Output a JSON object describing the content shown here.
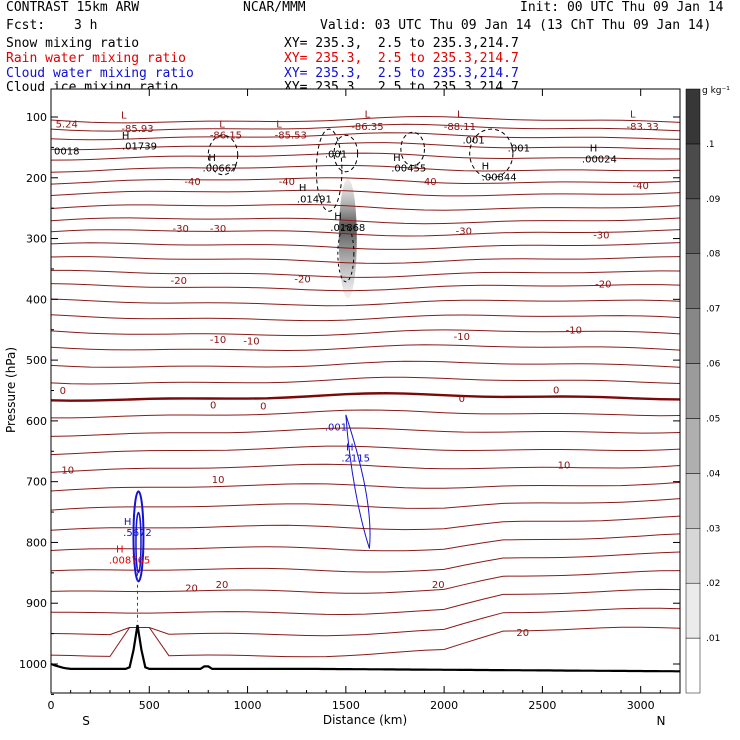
{
  "header": {
    "model": "CONTRAST 15km ARW",
    "agency": "NCAR/MMM",
    "init": "Init: 00 UTC Thu 09 Jan 14",
    "fcst_label": "Fcst:",
    "fcst_value": "3 h",
    "valid": "Valid: 03 UTC Thu 09 Jan 14 (13 ChT Thu 09 Jan 14)",
    "fields": [
      {
        "name": "Snow mixing ratio",
        "xy": "XY= 235.3,  2.5 to 235.3,214.7"
      },
      {
        "name": "Rain water mixing ratio",
        "xy": "XY= 235.3,  2.5 to 235.3,214.7"
      },
      {
        "name": "Cloud water mixing ratio",
        "xy": "XY= 235.3,  2.5 to 235.3,214.7"
      },
      {
        "name": "Cloud ice mixing ratio",
        "xy": "XY= 235.3,  2.5 to 235.3,214.7"
      }
    ]
  },
  "chart_data": {
    "type": "cross-section",
    "xlabel": "Distance (km)",
    "ylabel": "Pressure (hPa)",
    "xlim": [
      0,
      3200
    ],
    "ylim": [
      1050,
      70
    ],
    "x_ticks": [
      0,
      500,
      1000,
      1500,
      2000,
      2500,
      3000
    ],
    "y_ticks": [
      100,
      200,
      300,
      400,
      500,
      600,
      700,
      800,
      900,
      1000
    ],
    "x_end_labels": {
      "left": "S",
      "right": "N"
    },
    "colorbar": {
      "unit": "g kg⁻¹",
      "levels": [
        ".01",
        ".02",
        ".03",
        ".04",
        ".05",
        ".06",
        ".07",
        ".08",
        ".09",
        ".1"
      ]
    },
    "temperature_contour_labels": [
      {
        "text": "-40",
        "x": 720,
        "p": 205
      },
      {
        "text": "-40",
        "x": 1200,
        "p": 205
      },
      {
        "text": "-40",
        "x": 1920,
        "p": 205
      },
      {
        "text": "-40",
        "x": 3000,
        "p": 212
      },
      {
        "text": "-30",
        "x": 660,
        "p": 283
      },
      {
        "text": "-30",
        "x": 850,
        "p": 283
      },
      {
        "text": "-30",
        "x": 2100,
        "p": 287
      },
      {
        "text": "-30",
        "x": 2800,
        "p": 293
      },
      {
        "text": "-20",
        "x": 650,
        "p": 368
      },
      {
        "text": "-20",
        "x": 1280,
        "p": 366
      },
      {
        "text": "-20",
        "x": 2810,
        "p": 374
      },
      {
        "text": "-10",
        "x": 850,
        "p": 465
      },
      {
        "text": "-10",
        "x": 1020,
        "p": 468
      },
      {
        "text": "-10",
        "x": 2090,
        "p": 460
      },
      {
        "text": "-10",
        "x": 2660,
        "p": 450
      },
      {
        "text": "0",
        "x": 60,
        "p": 549
      },
      {
        "text": "0",
        "x": 825,
        "p": 573
      },
      {
        "text": "0",
        "x": 1080,
        "p": 575
      },
      {
        "text": "0",
        "x": 2090,
        "p": 562
      },
      {
        "text": "0",
        "x": 2570,
        "p": 548
      },
      {
        "text": "10",
        "x": 85,
        "p": 680
      },
      {
        "text": "10",
        "x": 850,
        "p": 696
      },
      {
        "text": "10",
        "x": 2610,
        "p": 672
      },
      {
        "text": "20",
        "x": 715,
        "p": 874
      },
      {
        "text": "20",
        "x": 870,
        "p": 868
      },
      {
        "text": "20",
        "x": 1970,
        "p": 868
      },
      {
        "text": "20",
        "x": 2400,
        "p": 947
      }
    ],
    "annotations": [
      {
        "text": "L",
        "x": 370,
        "p": 96,
        "color": "#8b1010"
      },
      {
        "text": "-85.93",
        "x": 440,
        "p": 118,
        "color": "#8b1010"
      },
      {
        "text": "5.24",
        "x": 80,
        "p": 111,
        "color": "#8b1010"
      },
      {
        "text": "L",
        "x": 870,
        "p": 111,
        "color": "#8b1010"
      },
      {
        "text": "-86.15",
        "x": 890,
        "p": 129,
        "color": "#8b1010"
      },
      {
        "text": "L",
        "x": 1160,
        "p": 111,
        "color": "#8b1010"
      },
      {
        "text": "-85.53",
        "x": 1220,
        "p": 129,
        "color": "#8b1010"
      },
      {
        "text": "L",
        "x": 1610,
        "p": 94,
        "color": "#8b1010"
      },
      {
        "text": "-86.35",
        "x": 1610,
        "p": 115,
        "color": "#8b1010"
      },
      {
        "text": "L",
        "x": 2080,
        "p": 94,
        "color": "#8b1010"
      },
      {
        "text": "-88.11",
        "x": 2080,
        "p": 115,
        "color": "#8b1010"
      },
      {
        "text": "L",
        "x": 2960,
        "p": 94,
        "color": "#8b1010"
      },
      {
        "text": "-83.33",
        "x": 3010,
        "p": 115,
        "color": "#8b1010"
      },
      {
        "text": "H",
        "x": 380,
        "p": 130,
        "color": "#000000"
      },
      {
        "text": ".01739",
        "x": 450,
        "p": 147,
        "color": "#000000"
      },
      {
        "text": "0018",
        "x": 80,
        "p": 155,
        "color": "#000000"
      },
      {
        "text": "H",
        "x": 820,
        "p": 166,
        "color": "#000000"
      },
      {
        "text": ".00667",
        "x": 860,
        "p": 183,
        "color": "#000000"
      },
      {
        "text": ".001",
        "x": 1450,
        "p": 160,
        "color": "#000000"
      },
      {
        "text": "H",
        "x": 1280,
        "p": 215,
        "color": "#000000"
      },
      {
        "text": ".01491",
        "x": 1340,
        "p": 234,
        "color": "#000000"
      },
      {
        "text": "H",
        "x": 1760,
        "p": 166,
        "color": "#000000"
      },
      {
        "text": ".00455",
        "x": 1820,
        "p": 183,
        "color": "#000000"
      },
      {
        "text": ".001",
        "x": 2150,
        "p": 137,
        "color": "#000000"
      },
      {
        "text": ".001",
        "x": 2380,
        "p": 150,
        "color": "#000000"
      },
      {
        "text": "H",
        "x": 2210,
        "p": 180,
        "color": "#000000"
      },
      {
        "text": ".00844",
        "x": 2280,
        "p": 198,
        "color": "#000000"
      },
      {
        "text": "H",
        "x": 2760,
        "p": 150,
        "color": "#000000"
      },
      {
        "text": ".00024",
        "x": 2790,
        "p": 168,
        "color": "#000000"
      },
      {
        "text": "H",
        "x": 1460,
        "p": 262,
        "color": "#000000"
      },
      {
        "text": ".01868",
        "x": 1510,
        "p": 281,
        "color": "#000000"
      },
      {
        "text": ".001",
        "x": 1450,
        "p": 609,
        "color": "#1010d0"
      },
      {
        "text": "H",
        "x": 1520,
        "p": 642,
        "color": "#1010d0"
      },
      {
        "text": ".2115",
        "x": 1550,
        "p": 660,
        "color": "#1010d0"
      },
      {
        "text": "H",
        "x": 390,
        "p": 765,
        "color": "#1010d0"
      },
      {
        "text": ".5672",
        "x": 440,
        "p": 783,
        "color": "#1010d0"
      },
      {
        "text": "H",
        "x": 350,
        "p": 810,
        "color": "#e00000"
      },
      {
        "text": ".008765",
        "x": 400,
        "p": 828,
        "color": "#e00000"
      }
    ]
  }
}
